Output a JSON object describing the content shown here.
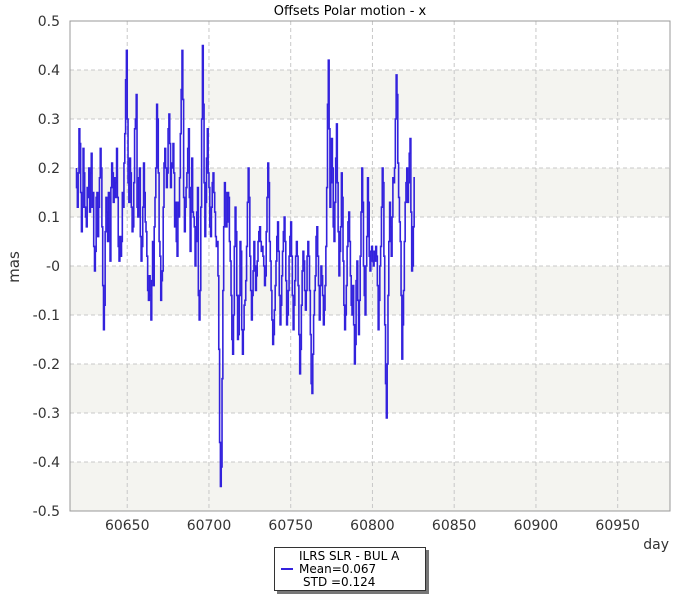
{
  "chart_data": {
    "type": "line",
    "title": "Offsets Polar motion - x",
    "xlabel": "day",
    "ylabel": "mas",
    "xlim": [
      60615,
      60982
    ],
    "ylim": [
      -0.5,
      0.5
    ],
    "x_ticks": [
      60650,
      60700,
      60750,
      60800,
      60850,
      60900,
      60950
    ],
    "y_ticks": [
      -0.5,
      -0.4,
      -0.3,
      -0.2,
      -0.1,
      0,
      0.1,
      0.2,
      0.3,
      0.4,
      0.5
    ],
    "y_tick_labels": [
      "-0.5",
      "-0.4",
      "-0.3",
      "-0.2",
      "-0.1",
      "-0",
      "0.1",
      "0.2",
      "0.3",
      "0.4",
      "0.5"
    ],
    "grid": true,
    "background_bands": true,
    "legend_position": "bottom-center",
    "series": [
      {
        "name": "ILRS SLR - BUL A",
        "color": "#3322dd",
        "x_start": 60619,
        "x_step": 0.5,
        "values": [
          0.2,
          0.16,
          0.12,
          0.19,
          0.28,
          0.25,
          0.15,
          0.07,
          0.12,
          0.24,
          0.19,
          0.12,
          0.1,
          0.08,
          0.16,
          0.14,
          0.2,
          0.11,
          0.19,
          0.23,
          0.12,
          0.15,
          0.04,
          -0.01,
          0.03,
          0.14,
          0.15,
          0.06,
          0.12,
          0.18,
          0.24,
          0.2,
          0.08,
          -0.04,
          -0.13,
          -0.08,
          0.07,
          0.14,
          0.11,
          0.05,
          0.15,
          0.14,
          0.01,
          0.16,
          0.21,
          0.19,
          0.13,
          0.18,
          0.14,
          0.17,
          0.24,
          0.14,
          0.04,
          0.01,
          0.06,
          0.02,
          0.05,
          0.15,
          0.12,
          0.21,
          0.27,
          0.38,
          0.44,
          0.3,
          0.17,
          0.13,
          0.22,
          0.19,
          0.12,
          0.07,
          0.08,
          0.17,
          0.28,
          0.3,
          0.35,
          0.12,
          0.1,
          0.18,
          0.2,
          0.06,
          0.01,
          0.04,
          0.12,
          0.21,
          0.15,
          0.09,
          0.07,
          0.02,
          -0.05,
          -0.07,
          -0.02,
          -0.06,
          -0.11,
          -0.03,
          0.05,
          -0.04,
          0.08,
          0.14,
          0.2,
          0.33,
          0.3,
          0.19,
          0.05,
          0.02,
          -0.07,
          -0.03,
          -0.01,
          0.12,
          0.21,
          0.24,
          0.2,
          0.16,
          0.19,
          0.28,
          0.31,
          0.25,
          0.16,
          0.21,
          0.2,
          0.25,
          0.19,
          0.08,
          0.13,
          0.05,
          0.02,
          0.13,
          0.1,
          0.18,
          0.27,
          0.36,
          0.44,
          0.34,
          0.14,
          0.07,
          0.12,
          0.16,
          0.19,
          0.24,
          0.28,
          0.14,
          0.03,
          0.16,
          0.22,
          0.11,
          0.1,
          0.08,
          0.0,
          0.05,
          0.11,
          0.16,
          -0.06,
          -0.11,
          -0.05,
          0.12,
          0.3,
          0.45,
          0.33,
          0.17,
          0.06,
          0.13,
          0.22,
          0.28,
          0.19,
          0.16,
          0.08,
          0.06,
          0.12,
          0.17,
          0.19,
          0.15,
          0.11,
          0.06,
          0.04,
          0.05,
          -0.02,
          -0.17,
          -0.36,
          -0.45,
          -0.41,
          -0.23,
          -0.05,
          0.08,
          0.17,
          0.15,
          0.08,
          0.09,
          0.15,
          0.14,
          0.05,
          0.01,
          -0.06,
          -0.15,
          -0.18,
          -0.1,
          0.04,
          0.12,
          0.07,
          -0.06,
          -0.15,
          -0.14,
          -0.06,
          0.05,
          0.03,
          -0.13,
          -0.18,
          -0.13,
          -0.08,
          -0.07,
          -0.03,
          0.04,
          0.13,
          0.2,
          0.14,
          0.02,
          -0.05,
          -0.11,
          -0.06,
          -0.01,
          0.05,
          0.0,
          -0.05,
          -0.02,
          0.01,
          0.05,
          0.07,
          0.08,
          0.05,
          0.03,
          0.04,
          0.02,
          0.0,
          -0.04,
          -0.02,
          0.07,
          0.14,
          0.21,
          0.17,
          0.05,
          0.01,
          -0.05,
          -0.11,
          -0.16,
          -0.14,
          -0.09,
          -0.04,
          0.01,
          0.06,
          0.09,
          0.03,
          -0.06,
          -0.12,
          -0.08,
          -0.02,
          0.03,
          0.07,
          0.1,
          0.05,
          -0.03,
          -0.12,
          -0.1,
          -0.05,
          0.02,
          0.06,
          0.09,
          0.02,
          -0.06,
          -0.13,
          -0.08,
          -0.03,
          0.02,
          0.05,
          0.02,
          -0.04,
          -0.14,
          -0.22,
          -0.17,
          -0.08,
          -0.01,
          0.03,
          0.01,
          -0.05,
          -0.09,
          -0.05,
          0.02,
          0.05,
          0.02,
          -0.05,
          -0.14,
          -0.24,
          -0.26,
          -0.18,
          -0.1,
          -0.05,
          -0.02,
          0.06,
          0.08,
          0.02,
          -0.04,
          -0.11,
          -0.04,
          0.0,
          -0.02,
          -0.06,
          -0.12,
          -0.09,
          -0.04,
          0.04,
          0.16,
          0.33,
          0.42,
          0.28,
          0.12,
          0.17,
          0.26,
          0.2,
          0.08,
          0.05,
          0.13,
          0.22,
          0.29,
          0.17,
          0.07,
          -0.02,
          0.03,
          0.08,
          0.19,
          0.14,
          0.01,
          -0.08,
          -0.13,
          -0.1,
          -0.04,
          0.04,
          0.09,
          0.11,
          0.05,
          -0.02,
          -0.08,
          -0.1,
          -0.04,
          -0.12,
          -0.2,
          -0.16,
          -0.03,
          0.01,
          -0.07,
          -0.14,
          -0.07,
          0.02,
          0.11,
          0.2,
          0.13,
          0.0,
          -0.06,
          -0.1,
          0.0,
          0.06,
          0.18,
          0.13,
          0.02,
          -0.01,
          0.03,
          0.04,
          0.01,
          0.0,
          0.03,
          0.01,
          0.04,
          0.02,
          -0.04,
          -0.13,
          -0.07,
          0.0,
          0.04,
          0.12,
          0.2,
          0.17,
          0.02,
          -0.12,
          -0.24,
          -0.31,
          -0.2,
          -0.06,
          0.05,
          0.13,
          0.08,
          0.02,
          0.1,
          0.18,
          0.17,
          0.2,
          0.3,
          0.39,
          0.35,
          0.21,
          0.14,
          0.09,
          0.05,
          -0.06,
          -0.19,
          -0.12,
          -0.05,
          0.05,
          0.13,
          0.17,
          0.2,
          0.13,
          0.17,
          0.23,
          0.26,
          0.11,
          -0.01,
          0.0,
          0.08,
          0.18
        ]
      }
    ]
  },
  "legend": {
    "name": "ILRS SLR - BUL A",
    "mean": "Mean=0.067",
    "std": "STD =0.124"
  }
}
